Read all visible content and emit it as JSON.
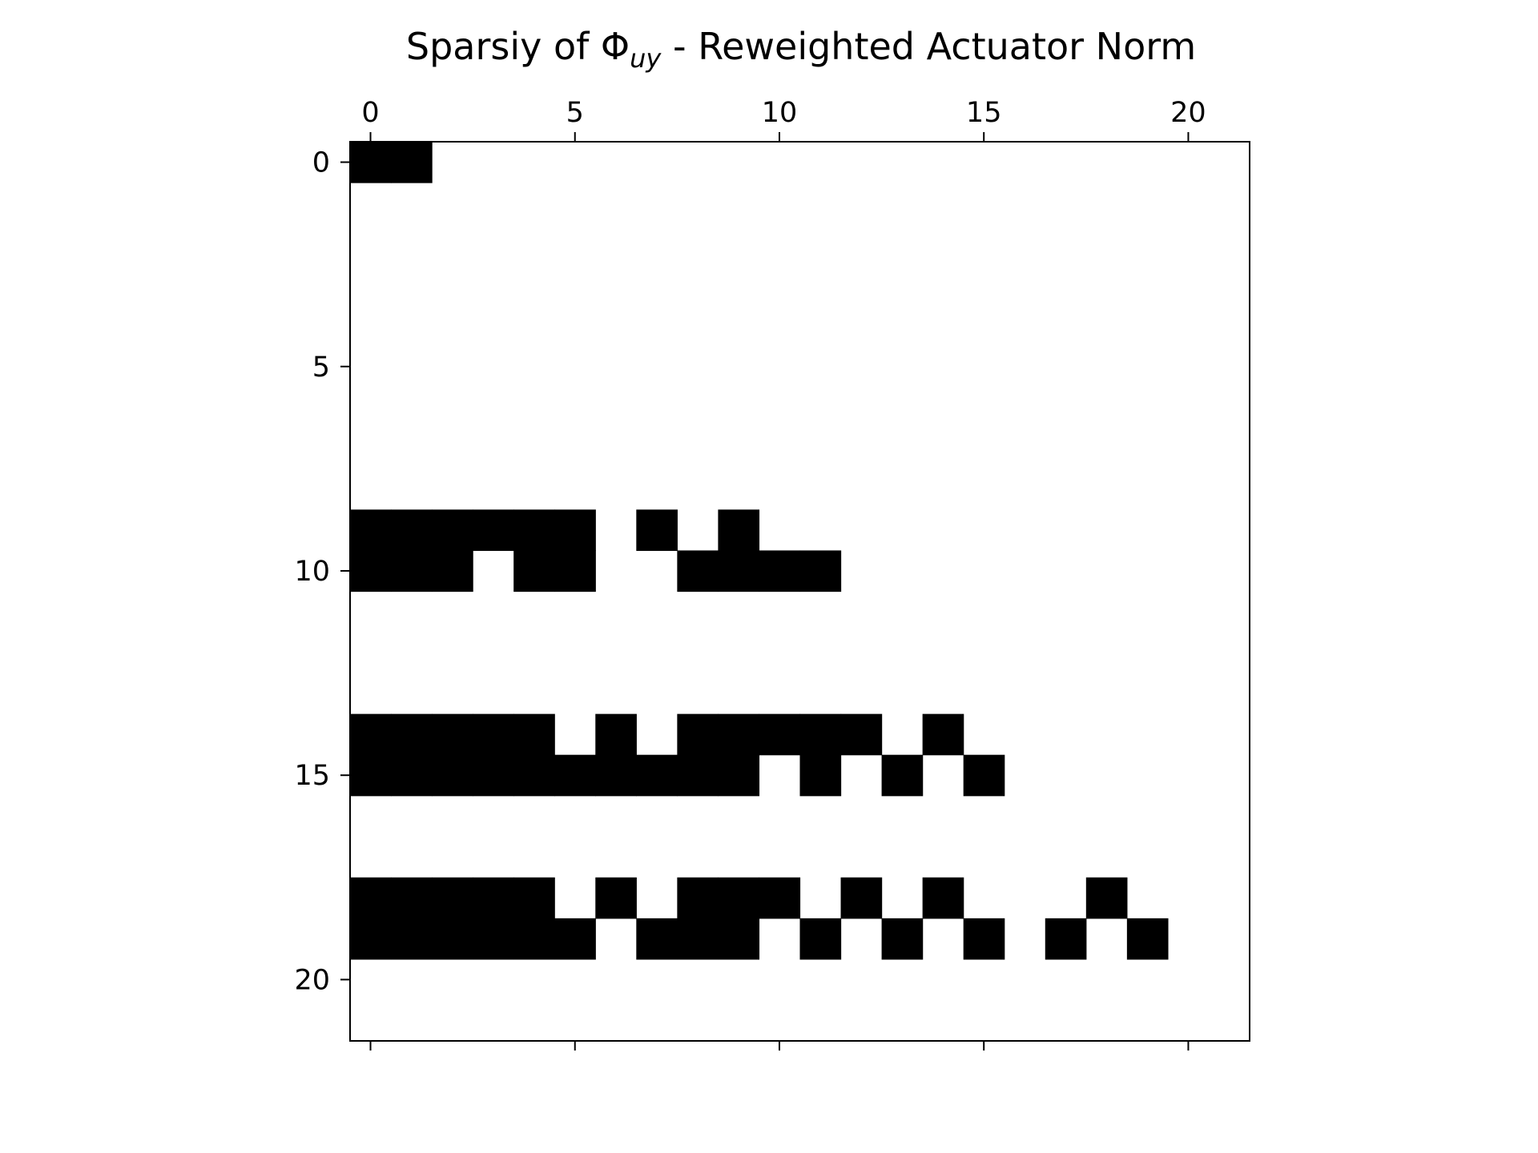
{
  "chart_data": {
    "type": "heatmap",
    "title": "Sparsiy of Φ",
    "title_subscript": "uy",
    "title_suffix": " - Reweighted Actuator Norm",
    "x_axis_position": "top",
    "y_axis_inverted": true,
    "xlim": [
      -0.5,
      21.5
    ],
    "ylim": [
      21.5,
      -0.5
    ],
    "x_ticks": [
      0,
      5,
      10,
      15,
      20
    ],
    "y_ticks": [
      0,
      5,
      10,
      15,
      20
    ],
    "grid": false,
    "colors": {
      "nonzero": "#000000",
      "zero": "#ffffff",
      "axis": "#000000"
    },
    "nonzero_cells": [
      {
        "row": 0,
        "cols": [
          0,
          1
        ]
      },
      {
        "row": 9,
        "cols": [
          0,
          1,
          2,
          3,
          4,
          5,
          7,
          9
        ]
      },
      {
        "row": 10,
        "cols": [
          0,
          1,
          2,
          4,
          5,
          8,
          9,
          10,
          11
        ]
      },
      {
        "row": 14,
        "cols": [
          0,
          1,
          2,
          3,
          4,
          6,
          8,
          9,
          10,
          11,
          12,
          14
        ]
      },
      {
        "row": 15,
        "cols": [
          0,
          1,
          2,
          3,
          4,
          5,
          6,
          7,
          8,
          9,
          11,
          13,
          15
        ]
      },
      {
        "row": 18,
        "cols": [
          0,
          1,
          2,
          3,
          4,
          6,
          8,
          9,
          10,
          12,
          14,
          18
        ]
      },
      {
        "row": 19,
        "cols": [
          0,
          1,
          2,
          3,
          4,
          5,
          7,
          8,
          9,
          11,
          13,
          15,
          17,
          19
        ]
      }
    ]
  }
}
